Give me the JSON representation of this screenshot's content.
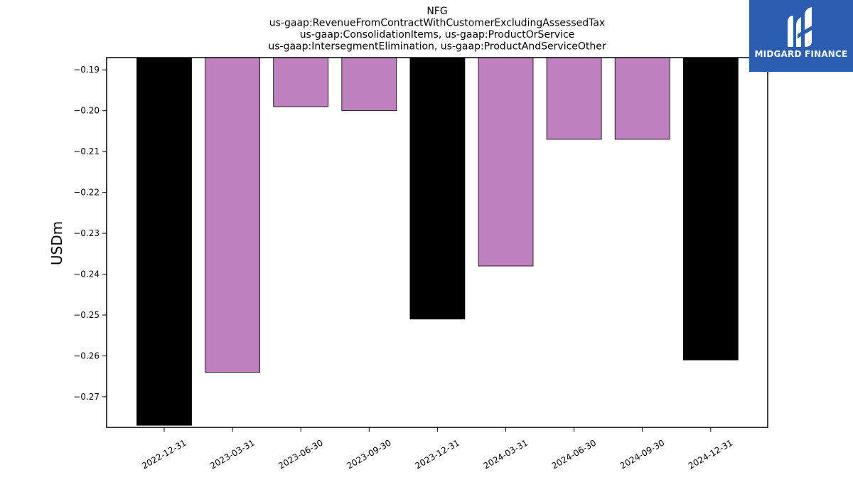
{
  "chart_data": {
    "type": "bar",
    "title_lines": [
      "NFG",
      "us-gaap:RevenueFromContractWithCustomerExcludingAssessedTax",
      "us-gaap:ConsolidationItems, us-gaap:ProductOrService",
      "us-gaap:IntersegmentElimination, us-gaap:ProductAndServiceOther"
    ],
    "ylabel": "USDm",
    "xlabel": "",
    "categories": [
      "2022-12-31",
      "2023-03-31",
      "2023-06-30",
      "2023-09-30",
      "2023-12-31",
      "2024-03-31",
      "2024-06-30",
      "2024-09-30",
      "2024-12-31"
    ],
    "values": [
      -0.277,
      -0.264,
      -0.199,
      -0.2,
      -0.251,
      -0.238,
      -0.207,
      -0.207,
      -0.261
    ],
    "bar_colors": [
      "#000000",
      "#bf80bf",
      "#bf80bf",
      "#bf80bf",
      "#000000",
      "#bf80bf",
      "#bf80bf",
      "#bf80bf",
      "#000000"
    ],
    "ylim": [
      -0.2775,
      -0.187
    ],
    "yticks": [
      -0.19,
      -0.2,
      -0.21,
      -0.22,
      -0.23,
      -0.24,
      -0.25,
      -0.26,
      -0.27
    ],
    "ytick_labels": [
      "−0.19",
      "−0.20",
      "−0.21",
      "−0.22",
      "−0.23",
      "−0.24",
      "−0.25",
      "−0.26",
      "−0.27"
    ],
    "grid": false,
    "legend": "none"
  },
  "logo": {
    "text": "MIDGARD FINANCE",
    "background": "#2d5db0",
    "icon": "midgard-logo-icon"
  }
}
